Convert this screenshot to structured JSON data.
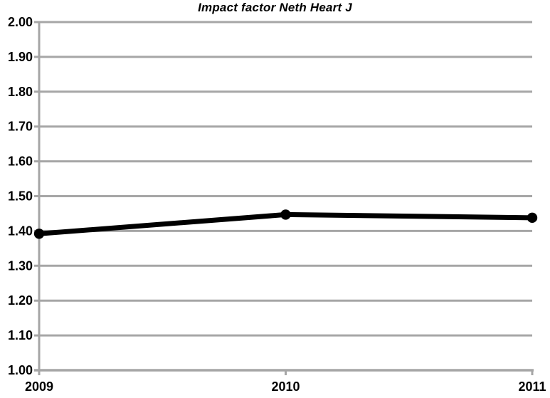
{
  "chart_data": {
    "type": "line",
    "title": "Impact factor Neth Heart J",
    "x": [
      "2009",
      "2010",
      "2011"
    ],
    "series": [
      {
        "name": "Impact factor",
        "values": [
          1.392,
          1.447,
          1.438
        ]
      }
    ],
    "xlabel": "",
    "ylabel": "",
    "ylim": [
      1.0,
      2.0
    ],
    "ytick_step": 0.1,
    "ytick_labels": [
      "1.00",
      "1.10",
      "1.20",
      "1.30",
      "1.40",
      "1.50",
      "1.60",
      "1.70",
      "1.80",
      "1.90",
      "2.00"
    ],
    "grid": true,
    "legend": "none",
    "colors": {
      "line": "#000000",
      "marker": "#000000",
      "grid": "#a6a6a6",
      "axis": "#a6a6a6",
      "text": "#000000",
      "background": "#ffffff"
    }
  }
}
